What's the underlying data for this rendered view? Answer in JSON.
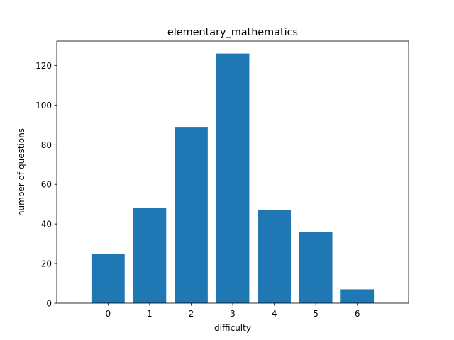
{
  "chart_data": {
    "type": "bar",
    "title": "elementary_mathematics",
    "xlabel": "difficulty",
    "ylabel": "number of questions",
    "categories": [
      "0",
      "1",
      "2",
      "3",
      "4",
      "5",
      "6"
    ],
    "values": [
      25,
      48,
      89,
      126,
      47,
      36,
      7
    ],
    "ylim": [
      0,
      132.3
    ],
    "yticks": [
      0,
      20,
      40,
      60,
      80,
      100,
      120
    ],
    "grid": false,
    "bar_color": "#1f77b4"
  }
}
